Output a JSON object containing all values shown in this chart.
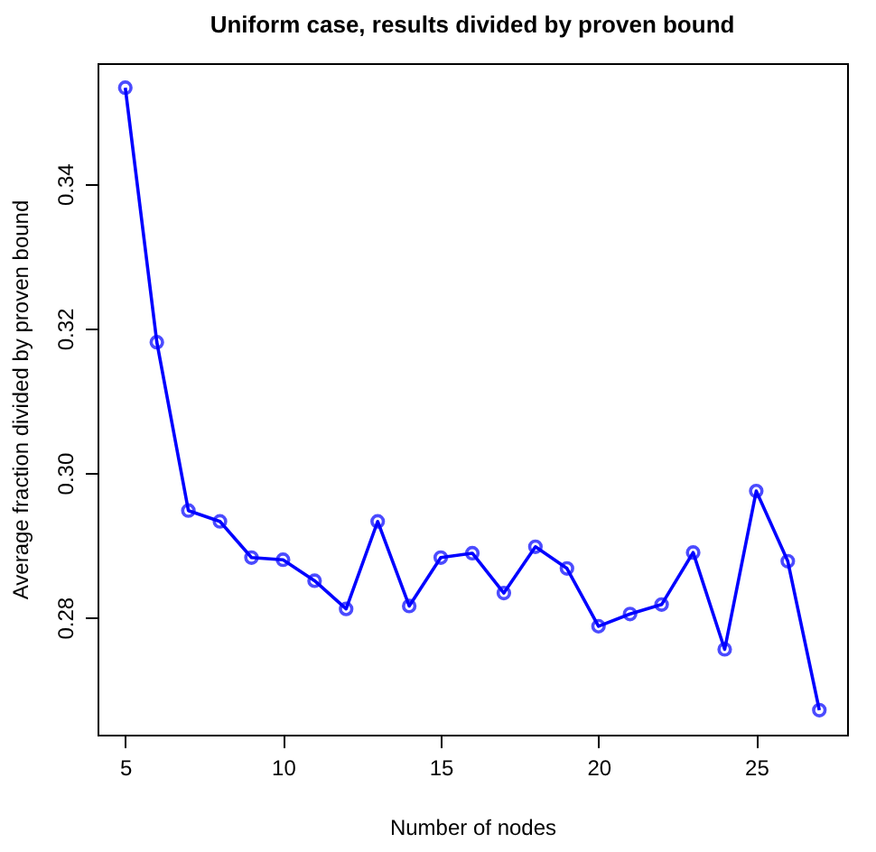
{
  "chart_data": {
    "type": "line",
    "title": "Uniform case, results divided by proven bound",
    "xlabel": "Number of nodes",
    "ylabel": "Average fraction divided by proven bound",
    "x": [
      5,
      6,
      7,
      8,
      9,
      10,
      11,
      12,
      13,
      14,
      15,
      16,
      17,
      18,
      19,
      20,
      21,
      22,
      23,
      24,
      25,
      26,
      27
    ],
    "series": [
      {
        "color": "#0000ff",
        "values": [
          0.3533,
          0.3181,
          0.2948,
          0.2933,
          0.2883,
          0.288,
          0.2851,
          0.2812,
          0.2933,
          0.2816,
          0.2883,
          0.2889,
          0.2834,
          0.2898,
          0.2868,
          0.2788,
          0.2805,
          0.2818,
          0.289,
          0.2756,
          0.2975,
          0.2878,
          0.2672
        ]
      }
    ],
    "xlim": [
      4.12,
      27.88
    ],
    "ylim": [
      0.2638,
      0.3567
    ],
    "xticks": [
      5,
      10,
      15,
      20,
      25
    ],
    "yticks": [
      0.28,
      {
        "value": 0.3,
        "label": "0.30"
      },
      0.32,
      0.34
    ],
    "grid": false,
    "marker": "circle",
    "line_style": "solid"
  }
}
